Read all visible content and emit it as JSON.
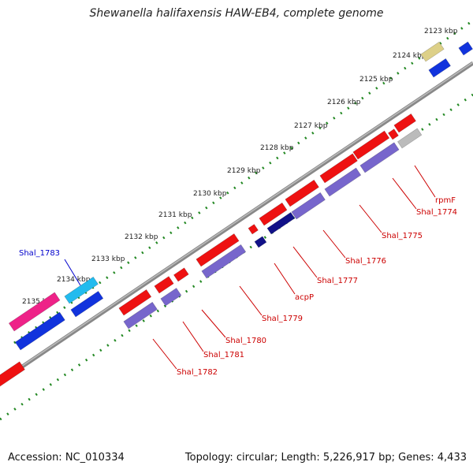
{
  "title": "Shewanella halifaxensis HAW-EB4, complete genome",
  "footer": {
    "accession": "Accession: NC_010334",
    "summary": "Topology: circular; Length: 5,226,917 bp; Genes: 4,433"
  },
  "colors": {
    "cds": "#ee1111",
    "gene_blue": "#1133dd",
    "gene_purple": "#7766cc",
    "gene_navy": "#111188",
    "gene_magenta": "#ee2288",
    "gene_cyan": "#22bbee",
    "gene_pale": "#ddd088",
    "gene_gray": "#bbbbbb",
    "backbone": "#888888",
    "tick": "#228822",
    "label_red": "#cc0000",
    "label_blue": "#0000cc"
  },
  "ticks": [
    "2123 kbp",
    "2124 kbp",
    "2125 kbp",
    "2126 kbp",
    "2127 kbp",
    "2128 kbp",
    "2129 kbp",
    "2130 kbp",
    "2131 kbp",
    "2132 kbp",
    "2133 kbp",
    "2134 kbp",
    "2135 kbp"
  ],
  "gene_labels": [
    "rpmF",
    "Shal_1774",
    "Shal_1775",
    "Shal_1776",
    "Shal_1777",
    "acpP",
    "Shal_1779",
    "Shal_1780",
    "Shal_1781",
    "Shal_1782",
    "Shal_1783"
  ]
}
